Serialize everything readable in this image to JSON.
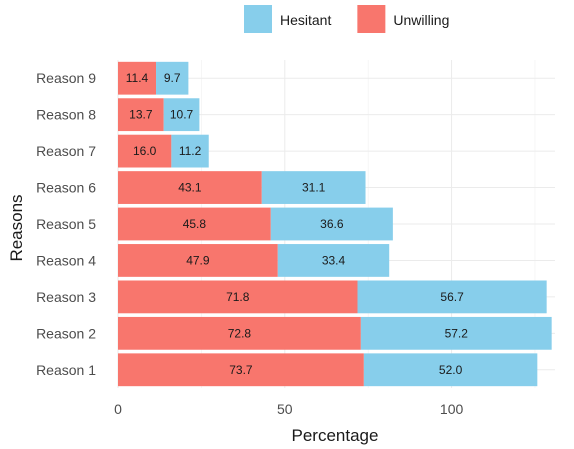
{
  "chart_data": {
    "type": "bar",
    "orientation": "horizontal",
    "stacked": true,
    "categories": [
      "Reason 1",
      "Reason 2",
      "Reason 3",
      "Reason 4",
      "Reason 5",
      "Reason 6",
      "Reason 7",
      "Reason 8",
      "Reason 9"
    ],
    "series": [
      {
        "name": "Unwilling",
        "color": "#F8766D",
        "values": [
          73.7,
          72.8,
          71.8,
          47.9,
          45.8,
          43.1,
          16.0,
          13.7,
          11.4
        ],
        "labels": [
          "73.7",
          "72.8",
          "71.8",
          "47.9",
          "45.8",
          "43.1",
          "16.0",
          "13.7",
          "11.4"
        ]
      },
      {
        "name": "Hesitant",
        "color": "#87CEEB",
        "values": [
          52.0,
          57.2,
          56.7,
          33.4,
          36.6,
          31.1,
          11.2,
          10.7,
          9.7
        ],
        "labels": [
          "52.0",
          "57.2",
          "56.7",
          "33.4",
          "36.6",
          "31.1",
          "11.2",
          "10.7",
          "9.7"
        ]
      }
    ],
    "legend": {
      "position": "top",
      "order": [
        "Hesitant",
        "Unwilling"
      ]
    },
    "xlabel": "Percentage",
    "ylabel": "Reasons",
    "xlim": [
      0,
      131
    ],
    "xticks": [
      0,
      50,
      100
    ],
    "grid": true
  }
}
